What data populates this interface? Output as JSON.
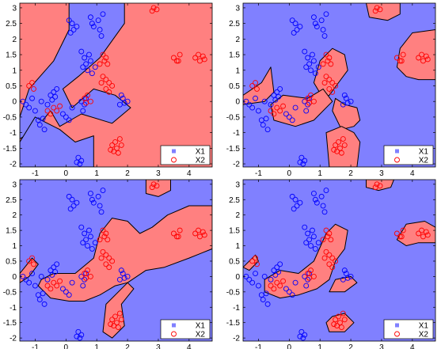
{
  "chart_data": [
    {
      "type": "scatter",
      "xlim": [
        -1.5,
        4.75
      ],
      "ylim": [
        -2.1,
        3.15
      ],
      "xticks": [
        "-1",
        "0",
        "1",
        "2",
        "3",
        "4"
      ],
      "yticks": [
        "-2",
        "-1.5",
        "-1",
        "-0.5",
        "0",
        "0.5",
        "1",
        "1.5",
        "2",
        "2.5",
        "3"
      ],
      "legend": {
        "placement": "bottom-right",
        "entries": [
          "X1",
          "X2"
        ]
      },
      "region_colors": {
        "X1": "#8080ff",
        "X2": "#ff8080"
      },
      "background_class": "X2",
      "x1_regions": [
        [
          [
            -1.5,
            -0.5
          ],
          [
            -1.2,
            0.4
          ],
          [
            -0.4,
            1.3
          ],
          [
            0.1,
            2.3
          ],
          [
            0.1,
            3.15
          ],
          [
            1.9,
            3.15
          ],
          [
            1.9,
            2.5
          ],
          [
            1.1,
            1.4
          ],
          [
            0.4,
            0.8
          ],
          [
            -0.1,
            0.4
          ],
          [
            0.2,
            -0.2
          ],
          [
            0.9,
            0.4
          ],
          [
            1.6,
            0.2
          ],
          [
            2.1,
            -0.2
          ],
          [
            1.5,
            -0.7
          ],
          [
            0.5,
            -0.4
          ],
          [
            -0.2,
            -0.8
          ],
          [
            -0.5,
            -0.3
          ],
          [
            -1.0,
            -0.9
          ],
          [
            -1.5,
            -1.2
          ]
        ],
        [
          [
            -1.5,
            -1.3
          ],
          [
            -1.0,
            -0.5
          ],
          [
            -0.2,
            -0.9
          ],
          [
            0.3,
            -1.3
          ],
          [
            0.9,
            -1.1
          ],
          [
            0.9,
            -2.1
          ],
          [
            -1.5,
            -2.1
          ]
        ]
      ],
      "x2_regions": []
    },
    {
      "type": "scatter",
      "xlim": [
        -1.5,
        4.75
      ],
      "ylim": [
        -2.1,
        3.15
      ],
      "xticks": [
        "-1",
        "0",
        "1",
        "2",
        "3",
        "4"
      ],
      "yticks": [
        "-2",
        "-1.5",
        "-1",
        "-0.5",
        "0",
        "0.5",
        "1",
        "1.5",
        "2",
        "2.5",
        "3"
      ],
      "legend": {
        "placement": "bottom-right",
        "entries": [
          "X1",
          "X2"
        ]
      },
      "region_colors": {
        "X1": "#8080ff",
        "X2": "#ff8080"
      },
      "background_class": "X1",
      "x1_regions": [],
      "x2_regions": [
        [
          [
            2.5,
            3.15
          ],
          [
            3.6,
            3.15
          ],
          [
            3.6,
            2.8
          ],
          [
            3.2,
            2.6
          ],
          [
            2.6,
            2.7
          ]
        ],
        [
          [
            3.5,
            1.1
          ],
          [
            3.6,
            1.7
          ],
          [
            4.0,
            2.2
          ],
          [
            4.75,
            2.3
          ],
          [
            4.75,
            0.7
          ],
          [
            4.2,
            0.7
          ],
          [
            3.8,
            0.8
          ]
        ],
        [
          [
            0.8,
            0.6
          ],
          [
            1.0,
            1.3
          ],
          [
            1.4,
            1.7
          ],
          [
            1.8,
            1.5
          ],
          [
            1.9,
            1.0
          ],
          [
            1.6,
            0.6
          ],
          [
            1.3,
            0.2
          ],
          [
            1.1,
            0.1
          ]
        ],
        [
          [
            -1.5,
            0.2
          ],
          [
            -0.9,
            0.6
          ],
          [
            -0.6,
            1.1
          ],
          [
            -0.5,
            0.3
          ],
          [
            -0.8,
            0.0
          ],
          [
            -1.5,
            -0.1
          ]
        ],
        [
          [
            -0.6,
            -0.1
          ],
          [
            -0.2,
            0.2
          ],
          [
            0.6,
            0.1
          ],
          [
            1.1,
            0.4
          ],
          [
            1.4,
            0.0
          ],
          [
            0.8,
            -0.6
          ],
          [
            0.2,
            -0.8
          ],
          [
            -0.5,
            -0.6
          ]
        ],
        [
          [
            1.4,
            -0.3
          ],
          [
            1.5,
            0.1
          ],
          [
            1.8,
            -0.1
          ],
          [
            2.2,
            -0.2
          ],
          [
            2.3,
            -0.6
          ],
          [
            2.1,
            -0.8
          ],
          [
            1.7,
            -0.9
          ]
        ],
        [
          [
            1.2,
            -1.0
          ],
          [
            1.3,
            -2.1
          ],
          [
            2.2,
            -2.1
          ],
          [
            2.3,
            -1.3
          ],
          [
            2.1,
            -1.0
          ],
          [
            1.7,
            -0.8
          ]
        ]
      ]
    },
    {
      "type": "scatter",
      "xlim": [
        -1.5,
        4.75
      ],
      "ylim": [
        -2.1,
        3.15
      ],
      "xticks": [
        "-1",
        "0",
        "1",
        "2",
        "3",
        "4"
      ],
      "yticks": [
        "-2",
        "-1.5",
        "-1",
        "-0.5",
        "0",
        "0.5",
        "1",
        "1.5",
        "2",
        "2.5",
        "3"
      ],
      "legend": {
        "placement": "bottom-right",
        "entries": [
          "X1",
          "X2"
        ]
      },
      "region_colors": {
        "X1": "#8080ff",
        "X2": "#ff8080"
      },
      "background_class": "X1",
      "x1_regions": [],
      "x2_regions": [
        [
          [
            2.6,
            3.15
          ],
          [
            3.4,
            3.15
          ],
          [
            3.4,
            2.8
          ],
          [
            3.0,
            2.6
          ],
          [
            2.6,
            2.7
          ]
        ],
        [
          [
            -0.8,
            -0.1
          ],
          [
            -0.4,
            0.1
          ],
          [
            0.3,
            0.1
          ],
          [
            0.9,
            0.6
          ],
          [
            1.1,
            1.4
          ],
          [
            1.5,
            1.9
          ],
          [
            2.0,
            1.8
          ],
          [
            2.4,
            1.4
          ],
          [
            2.8,
            1.6
          ],
          [
            3.3,
            2.0
          ],
          [
            4.0,
            2.3
          ],
          [
            4.75,
            2.3
          ],
          [
            4.75,
            0.9
          ],
          [
            4.0,
            0.6
          ],
          [
            3.2,
            0.3
          ],
          [
            2.6,
            0.2
          ],
          [
            2.0,
            -0.2
          ],
          [
            1.6,
            -0.3
          ],
          [
            1.1,
            -0.6
          ],
          [
            0.6,
            -0.8
          ],
          [
            0.1,
            -0.8
          ],
          [
            -0.5,
            -0.7
          ],
          [
            -0.9,
            -0.3
          ]
        ],
        [
          [
            -1.5,
            0.1
          ],
          [
            -1.1,
            0.6
          ],
          [
            -0.9,
            0.4
          ],
          [
            -1.2,
            0.0
          ],
          [
            -1.5,
            -0.2
          ]
        ],
        [
          [
            1.3,
            -0.9
          ],
          [
            1.2,
            -1.8
          ],
          [
            1.5,
            -2.0
          ],
          [
            1.9,
            -1.6
          ],
          [
            1.8,
            -0.9
          ],
          [
            2.2,
            -0.4
          ],
          [
            2.0,
            -0.2
          ]
        ]
      ]
    },
    {
      "type": "scatter",
      "xlim": [
        -1.5,
        4.75
      ],
      "ylim": [
        -2.1,
        3.15
      ],
      "xticks": [
        "-1",
        "0",
        "1",
        "2",
        "3",
        "4"
      ],
      "yticks": [
        "-2",
        "-1.5",
        "-1",
        "-0.5",
        "0",
        "0.5",
        "1",
        "1.5",
        "2",
        "2.5",
        "3"
      ],
      "legend": {
        "placement": "bottom-right",
        "entries": [
          "X1",
          "X2"
        ]
      },
      "region_colors": {
        "X1": "#8080ff",
        "X2": "#ff8080"
      },
      "background_class": "X1",
      "x1_regions": [],
      "x2_regions": [
        [
          [
            2.5,
            3.15
          ],
          [
            3.4,
            3.15
          ],
          [
            3.3,
            2.9
          ],
          [
            2.9,
            2.8
          ],
          [
            2.5,
            2.9
          ]
        ],
        [
          [
            3.5,
            1.2
          ],
          [
            3.8,
            1.7
          ],
          [
            4.4,
            1.8
          ],
          [
            4.75,
            1.6
          ],
          [
            4.75,
            1.1
          ],
          [
            4.2,
            1.1
          ],
          [
            3.8,
            1.0
          ]
        ],
        [
          [
            -0.8,
            -0.1
          ],
          [
            -0.3,
            0.2
          ],
          [
            0.3,
            0.1
          ],
          [
            0.8,
            0.5
          ],
          [
            1.2,
            1.4
          ],
          [
            1.5,
            1.7
          ],
          [
            1.9,
            1.5
          ],
          [
            1.8,
            0.9
          ],
          [
            1.5,
            0.5
          ],
          [
            1.3,
            -0.1
          ],
          [
            0.9,
            -0.4
          ],
          [
            0.3,
            -0.6
          ],
          [
            -0.3,
            -0.7
          ],
          [
            -0.8,
            -0.5
          ]
        ],
        [
          [
            -1.5,
            0.3
          ],
          [
            -1.1,
            0.7
          ],
          [
            -1.0,
            0.5
          ],
          [
            -1.3,
            0.2
          ]
        ],
        [
          [
            1.3,
            -0.5
          ],
          [
            1.5,
            -0.1
          ],
          [
            2.0,
            0.0
          ],
          [
            2.2,
            -0.2
          ],
          [
            1.8,
            -0.5
          ]
        ],
        [
          [
            1.2,
            -1.5
          ],
          [
            1.3,
            -1.8
          ],
          [
            1.8,
            -1.8
          ],
          [
            2.1,
            -1.5
          ],
          [
            1.8,
            -1.2
          ],
          [
            1.4,
            -1.3
          ]
        ]
      ]
    }
  ],
  "shared_points": {
    "X1": [
      [
        -1.4,
        0.0
      ],
      [
        -1.3,
        -0.1
      ],
      [
        -1.2,
        -0.2
      ],
      [
        -1.1,
        0.1
      ],
      [
        -1.0,
        -0.3
      ],
      [
        -0.8,
        0.0
      ],
      [
        -0.6,
        -0.1
      ],
      [
        -0.5,
        0.2
      ],
      [
        -0.4,
        0.3
      ],
      [
        -0.3,
        0.4
      ],
      [
        -0.45,
        0.05
      ],
      [
        -0.35,
        0.15
      ],
      [
        -0.9,
        -0.6
      ],
      [
        -0.85,
        -0.75
      ],
      [
        -0.7,
        -0.9
      ],
      [
        -0.75,
        -0.55
      ],
      [
        0.1,
        2.6
      ],
      [
        0.2,
        2.5
      ],
      [
        0.25,
        2.3
      ],
      [
        0.35,
        2.4
      ],
      [
        0.15,
        2.2
      ],
      [
        0.8,
        2.7
      ],
      [
        0.85,
        2.5
      ],
      [
        0.9,
        2.4
      ],
      [
        1.05,
        2.6
      ],
      [
        1.1,
        2.3
      ],
      [
        1.15,
        2.1
      ],
      [
        1.2,
        2.8
      ],
      [
        0.5,
        1.6
      ],
      [
        0.6,
        1.4
      ],
      [
        0.65,
        1.2
      ],
      [
        0.7,
        1.0
      ],
      [
        0.75,
        1.5
      ],
      [
        0.8,
        1.3
      ],
      [
        0.85,
        0.9
      ],
      [
        0.55,
        1.1
      ],
      [
        0.95,
        1.1
      ],
      [
        0.55,
        -0.3
      ],
      [
        0.6,
        -0.1
      ],
      [
        0.65,
        0.1
      ],
      [
        0.5,
        0.0
      ],
      [
        1.8,
        0.2
      ],
      [
        1.85,
        0.1
      ],
      [
        1.9,
        -0.05
      ],
      [
        2.0,
        0.0
      ],
      [
        1.75,
        -0.1
      ],
      [
        0.4,
        -1.8
      ],
      [
        0.5,
        -1.9
      ],
      [
        0.45,
        -2.0
      ],
      [
        0.35,
        -1.95
      ],
      [
        -0.1,
        -0.4
      ],
      [
        0.0,
        -0.5
      ],
      [
        0.1,
        -0.6
      ],
      [
        0.2,
        -0.2
      ]
    ],
    "X2": [
      [
        -0.6,
        -0.3
      ],
      [
        -0.5,
        -0.4
      ],
      [
        -0.4,
        -0.2
      ],
      [
        -0.3,
        -0.3
      ],
      [
        -0.2,
        -0.15
      ],
      [
        -1.2,
        0.5
      ],
      [
        -1.1,
        0.6
      ],
      [
        -1.05,
        0.4
      ],
      [
        0.6,
        0.1
      ],
      [
        0.7,
        0.2
      ],
      [
        0.8,
        0.0
      ],
      [
        0.65,
        -0.05
      ],
      [
        1.2,
        1.5
      ],
      [
        1.3,
        1.4
      ],
      [
        1.25,
        1.3
      ],
      [
        1.1,
        1.2
      ],
      [
        1.35,
        1.2
      ],
      [
        1.2,
        0.8
      ],
      [
        1.3,
        0.7
      ],
      [
        1.4,
        0.6
      ],
      [
        1.15,
        0.6
      ],
      [
        1.3,
        0.4
      ],
      [
        1.4,
        0.3
      ],
      [
        1.5,
        0.5
      ],
      [
        2.85,
        3.0
      ],
      [
        2.95,
        2.95
      ],
      [
        2.8,
        2.9
      ],
      [
        3.5,
        1.4
      ],
      [
        3.6,
        1.3
      ],
      [
        3.7,
        1.5
      ],
      [
        3.65,
        1.3
      ],
      [
        4.2,
        1.4
      ],
      [
        4.3,
        1.5
      ],
      [
        4.35,
        1.3
      ],
      [
        4.5,
        1.35
      ],
      [
        4.45,
        1.45
      ],
      [
        1.5,
        -1.4
      ],
      [
        1.6,
        -1.3
      ],
      [
        1.55,
        -1.6
      ],
      [
        1.65,
        -1.5
      ],
      [
        1.8,
        -1.4
      ],
      [
        1.75,
        -1.2
      ],
      [
        1.45,
        -1.55
      ],
      [
        1.7,
        -1.65
      ]
    ]
  }
}
